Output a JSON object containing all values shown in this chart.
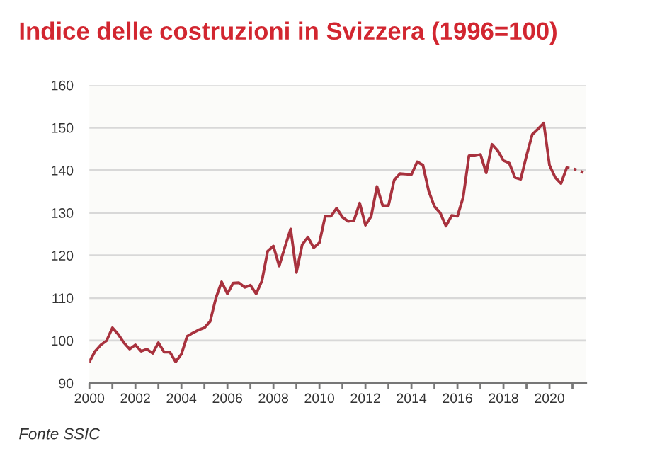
{
  "chart_data": {
    "type": "line",
    "title": "Indice delle costruzioni in Svizzera (1996=100)",
    "series": [
      {
        "color": "#a8323e",
        "line_style": "solid",
        "x": [
          2000,
          2000.25,
          2000.5,
          2000.75,
          2001,
          2001.25,
          2001.5,
          2001.75,
          2002,
          2002.25,
          2002.5,
          2002.75,
          2003,
          2003.25,
          2003.5,
          2003.75,
          2004,
          2004.25,
          2004.5,
          2004.75,
          2005,
          2005.25,
          2005.5,
          2005.75,
          2006,
          2006.25,
          2006.5,
          2006.75,
          2007,
          2007.25,
          2007.5,
          2007.75,
          2008,
          2008.25,
          2008.5,
          2008.75,
          2009,
          2009.25,
          2009.5,
          2009.75,
          2010,
          2010.25,
          2010.5,
          2010.75,
          2011,
          2011.25,
          2011.5,
          2011.75,
          2012,
          2012.25,
          2012.5,
          2012.75,
          2013,
          2013.25,
          2013.5,
          2013.75,
          2014,
          2014.25,
          2014.5,
          2014.75,
          2015,
          2015.25,
          2015.5,
          2015.75,
          2016,
          2016.25,
          2016.5,
          2016.75,
          2017,
          2017.25,
          2017.5,
          2017.75,
          2018,
          2018.25,
          2018.5,
          2018.75,
          2019,
          2019.25,
          2019.5,
          2019.75,
          2020,
          2020.25,
          2020.5,
          2020.75
        ],
        "values": [
          95,
          97.5,
          99,
          100,
          103,
          101.5,
          99.5,
          98,
          99,
          97.5,
          98,
          97,
          99.5,
          97.3,
          97.3,
          95,
          96.8,
          101,
          101.8,
          102.5,
          103,
          104.5,
          110,
          113.8,
          111,
          113.5,
          113.6,
          112.5,
          113,
          111,
          114,
          121,
          122.2,
          117.5,
          122,
          126.2,
          116,
          122.5,
          124.3,
          121.8,
          123,
          129.2,
          129.2,
          131.1,
          129,
          128,
          128.2,
          132.3,
          127.1,
          129.2,
          136.2,
          131.7,
          131.7,
          137.7,
          139.2,
          139.1,
          139,
          142,
          141.2,
          135.1,
          131.5,
          130,
          126.9,
          129.4,
          129.2,
          133.7,
          143.4,
          143.4,
          143.7,
          139.4,
          146.1,
          144.6,
          142.3,
          141.7,
          138.3,
          137.9,
          143.4,
          148.4,
          149.7,
          151.1,
          141.2,
          138.3,
          136.9,
          140.6
        ]
      },
      {
        "color": "#a8323e",
        "line_style": "dotted",
        "x": [
          2020.75,
          2021,
          2021.25,
          2021.5
        ],
        "values": [
          140.6,
          140.4,
          140,
          139.4
        ]
      }
    ],
    "xlim": [
      2000,
      2021.6
    ],
    "xticks": [
      2000,
      {
        "value": 2001,
        "label": null
      },
      2002,
      {
        "value": 2003,
        "label": null
      },
      2004,
      {
        "value": 2005,
        "label": null
      },
      2006,
      {
        "value": 2007,
        "label": null
      },
      2008,
      {
        "value": 2009,
        "label": null
      },
      2010,
      {
        "value": 2011,
        "label": null
      },
      2012,
      {
        "value": 2013,
        "label": null
      },
      2014,
      {
        "value": 2015,
        "label": null
      },
      2016,
      {
        "value": 2017,
        "label": null
      },
      2018,
      {
        "value": 2019,
        "label": null
      },
      2020,
      {
        "value": 2021,
        "label": null
      }
    ],
    "ylim": [
      90,
      160
    ],
    "yticks": [
      90,
      100,
      110,
      120,
      130,
      140,
      150,
      160
    ],
    "grid": "y",
    "legend": false,
    "annotations": [
      "Fonte SSIC"
    ]
  }
}
